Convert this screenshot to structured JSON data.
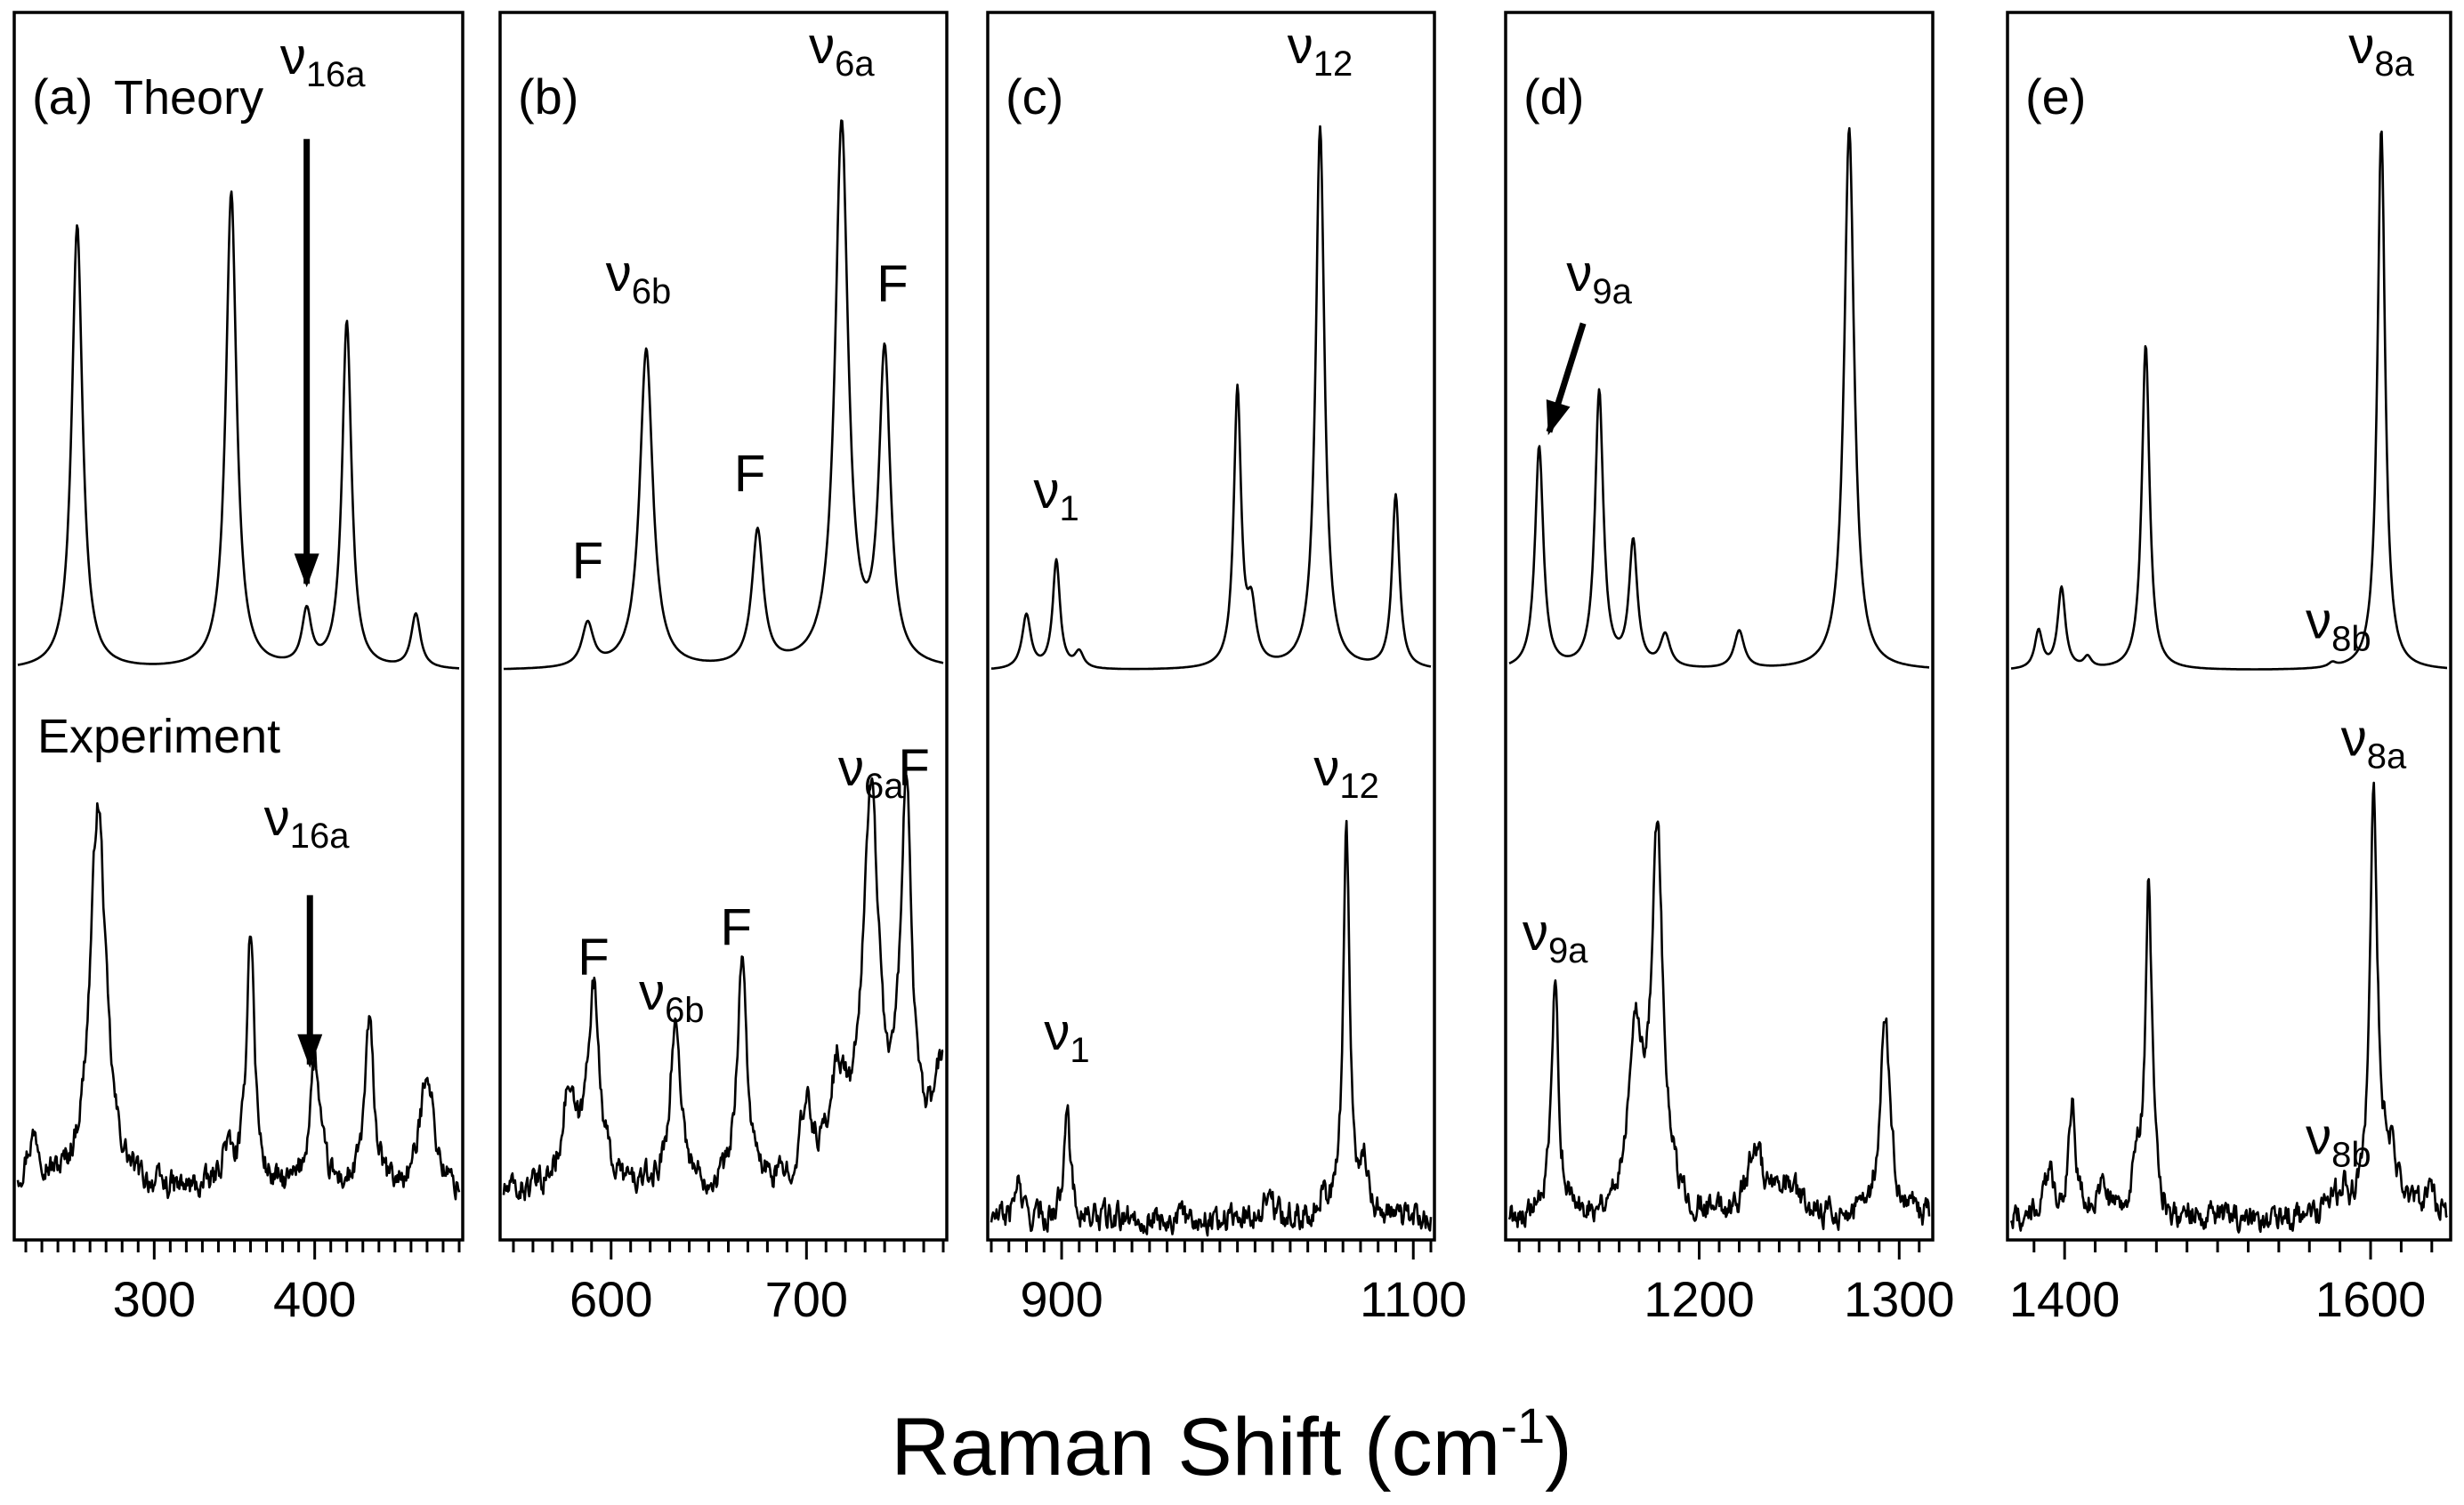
{
  "chart_data": {
    "type": "line",
    "xlabel": "Raman Shift (cm",
    "xlabel_sup": "-1",
    "xlabel_close": ")",
    "series_names": {
      "theory": "Theory",
      "experiment": "Experiment"
    },
    "panels": [
      {
        "id": "a",
        "label": "(a)",
        "xlim": [
          215,
          490
        ],
        "ticks": [
          300,
          400
        ],
        "tick_labels": [
          "300",
          "400"
        ],
        "minor_step": 10,
        "theory_peaks": [
          {
            "x": 252,
            "h": 0.82,
            "w": 4.0
          },
          {
            "x": 348,
            "h": 0.88,
            "w": 4.0
          },
          {
            "x": 395,
            "h": 0.1,
            "w": 3.5
          },
          {
            "x": 420,
            "h": 0.64,
            "w": 3.5
          },
          {
            "x": 463,
            "h": 0.1,
            "w": 3.5
          }
        ],
        "experiment_peaks": [
          {
            "x": 265,
            "h": 0.78,
            "w": 6.0
          },
          {
            "x": 360,
            "h": 0.53,
            "w": 3.0
          },
          {
            "x": 400,
            "h": 0.26,
            "w": 4.0
          },
          {
            "x": 434,
            "h": 0.33,
            "w": 3.5
          },
          {
            "x": 470,
            "h": 0.25,
            "w": 5.0
          },
          {
            "x": 225,
            "h": 0.1,
            "w": 6.0
          },
          {
            "x": 345,
            "h": 0.08,
            "w": 4.0
          }
        ],
        "annotations": [
          {
            "text": "ν",
            "sub": "16a",
            "x": 405,
            "curve": "theory",
            "y": 1.1,
            "arrow": {
              "x": 395,
              "y_from": 0.98,
              "y_to": 0.16
            }
          },
          {
            "text": "ν",
            "sub": "16a",
            "x": 395,
            "curve": "experiment",
            "y": 0.78,
            "arrow": {
              "x": 397,
              "y_from": 0.66,
              "y_to": 0.32
            }
          }
        ]
      },
      {
        "id": "b",
        "label": "(b)",
        "xlim": [
          545,
          770
        ],
        "ticks": [
          600,
          700
        ],
        "tick_labels": [
          "600",
          "700"
        ],
        "minor_step": 10,
        "theory_peaks": [
          {
            "x": 588,
            "h": 0.08,
            "w": 3.5
          },
          {
            "x": 618,
            "h": 0.59,
            "w": 4.0
          },
          {
            "x": 675,
            "h": 0.25,
            "w": 3.5
          },
          {
            "x": 718,
            "h": 1.0,
            "w": 4.0
          },
          {
            "x": 740,
            "h": 0.57,
            "w": 3.5
          }
        ],
        "experiment_peaks": [
          {
            "x": 578,
            "h": 0.18,
            "w": 4.0
          },
          {
            "x": 591,
            "h": 0.4,
            "w": 4.0
          },
          {
            "x": 633,
            "h": 0.33,
            "w": 3.5
          },
          {
            "x": 667,
            "h": 0.46,
            "w": 3.0
          },
          {
            "x": 700,
            "h": 0.14,
            "w": 4.0
          },
          {
            "x": 716,
            "h": 0.2,
            "w": 5.0
          },
          {
            "x": 733,
            "h": 0.78,
            "w": 5.0
          },
          {
            "x": 751,
            "h": 0.77,
            "w": 3.5
          },
          {
            "x": 770,
            "h": 0.24,
            "w": 6.0
          }
        ],
        "annotations": [
          {
            "text": "F",
            "x": 588,
            "curve": "theory",
            "y": 0.17
          },
          {
            "text": "ν",
            "sub": "6b",
            "x": 614,
            "curve": "theory",
            "y": 0.7
          },
          {
            "text": "F",
            "x": 671,
            "curve": "theory",
            "y": 0.33
          },
          {
            "text": "ν",
            "sub": "6a",
            "x": 718,
            "curve": "theory",
            "y": 1.12
          },
          {
            "text": "F",
            "x": 744,
            "curve": "theory",
            "y": 0.68
          },
          {
            "text": "F",
            "x": 591,
            "curve": "experiment",
            "y": 0.5
          },
          {
            "text": "ν",
            "sub": "6b",
            "x": 631,
            "curve": "experiment",
            "y": 0.43
          },
          {
            "text": "F",
            "x": 664,
            "curve": "experiment",
            "y": 0.56
          },
          {
            "text": "ν",
            "sub": "6a",
            "x": 733,
            "curve": "experiment",
            "y": 0.88
          },
          {
            "text": "F",
            "x": 755,
            "curve": "experiment",
            "y": 0.88
          }
        ]
      },
      {
        "id": "c",
        "label": "(c)",
        "xlim": [
          860,
          1110
        ],
        "ticks": [
          900,
          1100
        ],
        "tick_labels": [
          "900",
          "1100"
        ],
        "minor_step": 10,
        "theory_peaks": [
          {
            "x": 880,
            "h": 0.1,
            "w": 3.0
          },
          {
            "x": 897,
            "h": 0.2,
            "w": 2.5
          },
          {
            "x": 910,
            "h": 0.03,
            "w": 3.0
          },
          {
            "x": 1000,
            "h": 0.51,
            "w": 2.5
          },
          {
            "x": 1008,
            "h": 0.1,
            "w": 3.0
          },
          {
            "x": 1047,
            "h": 1.0,
            "w": 3.0
          },
          {
            "x": 1090,
            "h": 0.32,
            "w": 2.5
          }
        ],
        "experiment_peaks": [
          {
            "x": 875,
            "h": 0.08,
            "w": 2.0
          },
          {
            "x": 903,
            "h": 0.25,
            "w": 2.0
          },
          {
            "x": 1017,
            "h": 0.05,
            "w": 3.0
          },
          {
            "x": 1048,
            "h": 0.04,
            "w": 3.0
          },
          {
            "x": 1062,
            "h": 0.78,
            "w": 2.2
          },
          {
            "x": 1072,
            "h": 0.1,
            "w": 3.0
          }
        ],
        "annotations": [
          {
            "text": "ν",
            "sub": "1",
            "x": 897,
            "curve": "theory",
            "y": 0.3
          },
          {
            "text": "ν",
            "sub": "12",
            "x": 1047,
            "curve": "theory",
            "y": 1.12
          },
          {
            "text": "ν",
            "sub": "1",
            "x": 903,
            "curve": "experiment",
            "y": 0.35
          },
          {
            "text": "ν",
            "sub": "12",
            "x": 1062,
            "curve": "experiment",
            "y": 0.88
          }
        ]
      },
      {
        "id": "d",
        "label": "(d)",
        "xlim": [
          1105,
          1315
        ],
        "ticks": [
          1200,
          1300
        ],
        "tick_labels": [
          "1200",
          "1300"
        ],
        "minor_step": 10,
        "theory_peaks": [
          {
            "x": 1120,
            "h": 0.41,
            "w": 2.5
          },
          {
            "x": 1150,
            "h": 0.51,
            "w": 2.5
          },
          {
            "x": 1167,
            "h": 0.23,
            "w": 2.5
          },
          {
            "x": 1183,
            "h": 0.06,
            "w": 3.0
          },
          {
            "x": 1220,
            "h": 0.07,
            "w": 3.0
          },
          {
            "x": 1275,
            "h": 1.0,
            "w": 3.0
          }
        ],
        "experiment_peaks": [
          {
            "x": 1128,
            "h": 0.45,
            "w": 2.2
          },
          {
            "x": 1168,
            "h": 0.37,
            "w": 4.0
          },
          {
            "x": 1179,
            "h": 0.76,
            "w": 3.5
          },
          {
            "x": 1228,
            "h": 0.14,
            "w": 4.5
          },
          {
            "x": 1245,
            "h": 0.06,
            "w": 6.0
          },
          {
            "x": 1293,
            "h": 0.4,
            "w": 3.0
          }
        ],
        "annotations": [
          {
            "text": "ν",
            "sub": "9a",
            "x": 1150,
            "curve": "theory",
            "y": 0.7,
            "arrow": {
              "x_from": 1142,
              "x_to": 1125,
              "y_from": 0.64,
              "y_to": 0.44
            }
          },
          {
            "text": "ν",
            "sub": "9a",
            "x": 1128,
            "curve": "experiment",
            "y": 0.55
          }
        ]
      },
      {
        "id": "e",
        "label": "(e)",
        "xlim": [
          1365,
          1650
        ],
        "ticks": [
          1400,
          1600
        ],
        "tick_labels": [
          "1400",
          "1600"
        ],
        "minor_step": 20,
        "theory_peaks": [
          {
            "x": 1383,
            "h": 0.07,
            "w": 3.0
          },
          {
            "x": 1398,
            "h": 0.15,
            "w": 3.0
          },
          {
            "x": 1415,
            "h": 0.02,
            "w": 3.0
          },
          {
            "x": 1453,
            "h": 0.6,
            "w": 3.0
          },
          {
            "x": 1575,
            "h": 0.008,
            "w": 3.0
          },
          {
            "x": 1607,
            "h": 1.0,
            "w": 3.0
          }
        ],
        "experiment_peaks": [
          {
            "x": 1390,
            "h": 0.08,
            "w": 4.0
          },
          {
            "x": 1405,
            "h": 0.22,
            "w": 3.0
          },
          {
            "x": 1425,
            "h": 0.08,
            "w": 3.0
          },
          {
            "x": 1448,
            "h": 0.08,
            "w": 5.0
          },
          {
            "x": 1455,
            "h": 0.66,
            "w": 2.5
          },
          {
            "x": 1575,
            "h": 0.05,
            "w": 3.0
          },
          {
            "x": 1583,
            "h": 0.05,
            "w": 3.0
          },
          {
            "x": 1602,
            "h": 0.84,
            "w": 3.0
          },
          {
            "x": 1613,
            "h": 0.12,
            "w": 6.0
          },
          {
            "x": 1637,
            "h": 0.05,
            "w": 4.0
          }
        ],
        "annotations": [
          {
            "text": "ν",
            "sub": "8b",
            "x": 1579,
            "curve": "theory",
            "y": 0.06
          },
          {
            "text": "ν",
            "sub": "8a",
            "x": 1607,
            "curve": "theory",
            "y": 1.12
          },
          {
            "text": "ν",
            "sub": "8b",
            "x": 1579,
            "curve": "experiment",
            "y": 0.14
          },
          {
            "text": "ν",
            "sub": "8a",
            "x": 1602,
            "curve": "experiment",
            "y": 0.94
          }
        ]
      }
    ]
  }
}
